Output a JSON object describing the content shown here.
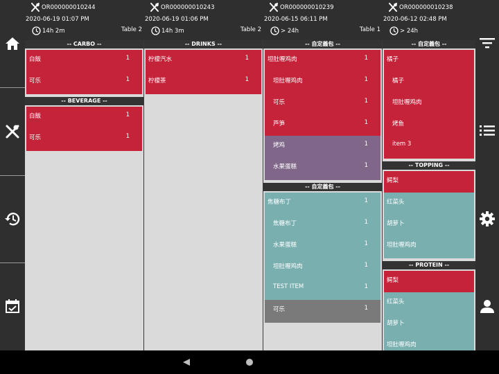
{
  "orders": [
    {
      "order_no": "OR000000010244",
      "timestamp": "2020-06-19 01:07 PM",
      "elapsed": "14h 2m",
      "table": "Table 2",
      "sections": [
        {
          "title": "-- CARBO --",
          "items": [
            {
              "name": "白飯",
              "qty": "1",
              "color": "#c4233a"
            },
            {
              "name": "可乐",
              "qty": "1",
              "color": "#c4233a"
            }
          ]
        },
        {
          "title": "-- BEVERAGE --",
          "items": [
            {
              "name": "白飯",
              "qty": "1",
              "color": "#c4233a"
            },
            {
              "name": "可乐",
              "qty": "1",
              "color": "#c4233a"
            }
          ]
        }
      ]
    },
    {
      "order_no": "OR000000010243",
      "timestamp": "2020-06-19 01:06 PM",
      "elapsed": "14h 3m",
      "table": "Table 2",
      "sections": [
        {
          "title": "-- DRINKS --",
          "items": [
            {
              "name": "柠檬汽水",
              "qty": "1",
              "color": "#c4233a"
            },
            {
              "name": "柠檬茶",
              "qty": "1",
              "color": "#c4233a"
            }
          ]
        }
      ]
    },
    {
      "order_no": "OR000000010239",
      "timestamp": "2020-06-15 06:11 PM",
      "elapsed": "> 24h",
      "table": "Table 1",
      "sections": [
        {
          "title": "-- 自定義包 --",
          "items": [
            {
              "name": "坦肚喱鸡肉",
              "qty": "1",
              "color": "#c4233a"
            },
            {
              "name": "坦肚喱鸡肉",
              "qty": "1",
              "color": "#c4233a",
              "sub": true
            },
            {
              "name": "可乐",
              "qty": "1",
              "color": "#c4233a",
              "sub": true
            },
            {
              "name": "芦笋",
              "qty": "1",
              "color": "#c4233a",
              "sub": true
            },
            {
              "name": "烤鸡",
              "qty": "1",
              "color": "#80678a",
              "sub": true
            },
            {
              "name": "水果蛋糕",
              "qty": "1",
              "color": "#80678a",
              "sub": true
            }
          ]
        },
        {
          "title": "-- 自定義包 --",
          "items": [
            {
              "name": "焦糖布丁",
              "qty": "1",
              "color": "#7aafb0"
            },
            {
              "name": "焦糖布丁",
              "qty": "1",
              "color": "#7aafb0",
              "sub": true
            },
            {
              "name": "水果蛋糕",
              "qty": "1",
              "color": "#7aafb0",
              "sub": true
            },
            {
              "name": "坦肚喱鸡肉",
              "qty": "1",
              "color": "#7aafb0",
              "sub": true
            },
            {
              "name": "TEST ITEM",
              "qty": "1",
              "color": "#7aafb0",
              "sub": true
            },
            {
              "name": "可乐",
              "qty": "1",
              "color": "#7a7a7a",
              "sub": true
            }
          ]
        }
      ]
    },
    {
      "order_no": "OR000000010238",
      "timestamp": "2020-06-12 02:48 PM",
      "elapsed": "> 24h",
      "table": "",
      "sections": [
        {
          "title": "-- 自定義包 --",
          "items": [
            {
              "name": "橘子",
              "qty": "",
              "color": "#c4233a"
            },
            {
              "name": "橘子",
              "qty": "",
              "color": "#c4233a",
              "sub": true
            },
            {
              "name": "坦肚喱鸡肉",
              "qty": "",
              "color": "#c4233a",
              "sub": true
            },
            {
              "name": "烤鱼",
              "qty": "",
              "color": "#c4233a",
              "sub": true
            },
            {
              "name": "item 3",
              "qty": "",
              "color": "#c4233a",
              "sub": true
            }
          ]
        },
        {
          "title": "-- TOPPING --",
          "items": [
            {
              "name": "鳄梨",
              "qty": "",
              "color": "#c4233a"
            },
            {
              "name": "红菜头",
              "qty": "",
              "color": "#7aafb0"
            },
            {
              "name": "胡萝卜",
              "qty": "",
              "color": "#7aafb0"
            },
            {
              "name": "坦肚喱鸡肉",
              "qty": "",
              "color": "#7aafb0"
            }
          ]
        },
        {
          "title": "-- PROTEIN --",
          "items": [
            {
              "name": "鳄梨",
              "qty": "",
              "color": "#c4233a"
            },
            {
              "name": "红菜头",
              "qty": "",
              "color": "#7aafb0"
            },
            {
              "name": "胡萝卜",
              "qty": "",
              "color": "#7aafb0"
            },
            {
              "name": "坦肚喱鸡肉",
              "qty": "",
              "color": "#7aafb0"
            }
          ]
        }
      ]
    }
  ],
  "left_nav": [
    "home-icon",
    "utensils-icon",
    "history-icon",
    "calendar-check-icon"
  ],
  "right_nav": [
    "filter-icon",
    "list-icon",
    "gear-icon",
    "user-icon"
  ],
  "system_nav": [
    "back-icon",
    "home-circle-icon"
  ]
}
